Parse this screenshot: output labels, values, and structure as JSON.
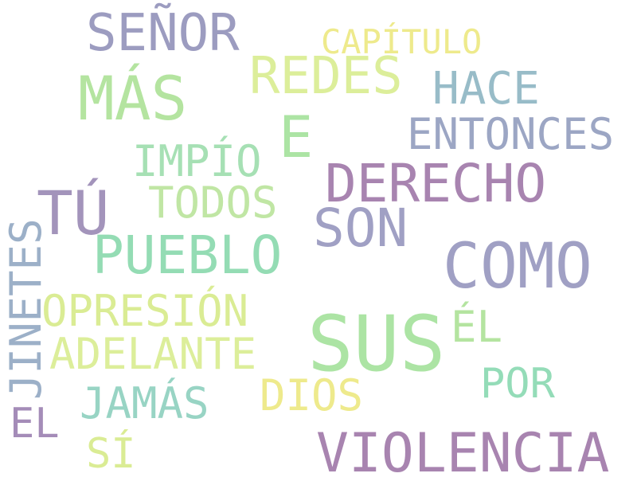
{
  "words": [
    {
      "text": "SEÑOR",
      "color": "#9c9cc0"
    },
    {
      "text": "CAPÍTULO",
      "color": "#eeea8c"
    },
    {
      "text": "REDES",
      "color": "#dcee9a"
    },
    {
      "text": "MÁS",
      "color": "#b4e4a0"
    },
    {
      "text": "HACE",
      "color": "#98bcc8"
    },
    {
      "text": "E",
      "color": "#ace4a4"
    },
    {
      "text": "ENTONCES",
      "color": "#9ca6c4"
    },
    {
      "text": "IMPÍO",
      "color": "#a6e0b4"
    },
    {
      "text": "DERECHO",
      "color": "#a884b0"
    },
    {
      "text": "TÚ",
      "color": "#a394bb"
    },
    {
      "text": "TODOS",
      "color": "#c0e6a4"
    },
    {
      "text": "SON",
      "color": "#a0a0c4"
    },
    {
      "text": "PUEBLO",
      "color": "#94dcb4"
    },
    {
      "text": "COMO",
      "color": "#a0a0c4"
    },
    {
      "text": "JINETES",
      "color": "#9cb0c8"
    },
    {
      "text": "OPRESIÓN",
      "color": "#daec94"
    },
    {
      "text": "SUS",
      "color": "#ace4a4"
    },
    {
      "text": "ÉL",
      "color": "#b4e4a0"
    },
    {
      "text": "ADELANTE",
      "color": "#dcee9a"
    },
    {
      "text": "POR",
      "color": "#94dcb8"
    },
    {
      "text": "DIOS",
      "color": "#eeea8c"
    },
    {
      "text": "JAMÁS",
      "color": "#98d4c4"
    },
    {
      "text": "EL",
      "color": "#a48cb8"
    },
    {
      "text": "VIOLENCIA",
      "color": "#a884b0"
    },
    {
      "text": "SÍ",
      "color": "#daec94"
    }
  ]
}
